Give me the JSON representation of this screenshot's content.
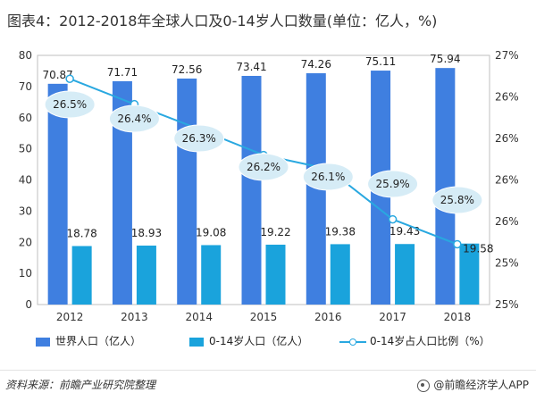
{
  "title": "图表4：2012-2018年全球人口及0-14岁人口数量(单位：亿人，%)",
  "chart_data": {
    "type": "bar+line",
    "categories": [
      "2012",
      "2013",
      "2014",
      "2015",
      "2016",
      "2017",
      "2018"
    ],
    "series": [
      {
        "name": "世界人口（亿人）",
        "axis": "left",
        "kind": "bar",
        "color": "#3f7fe0",
        "values": [
          70.87,
          71.71,
          72.56,
          73.41,
          74.26,
          75.11,
          75.94
        ]
      },
      {
        "name": "0-14岁人口（亿人）",
        "axis": "left",
        "kind": "bar",
        "color": "#1aa3dc",
        "values": [
          18.78,
          18.93,
          19.08,
          19.22,
          19.38,
          19.43,
          19.58
        ]
      },
      {
        "name": "0-14岁占人口比例（%）",
        "axis": "right",
        "kind": "line",
        "color": "#29a8e0",
        "values": [
          26.5,
          26.4,
          26.3,
          26.2,
          26.1,
          25.9,
          25.8
        ],
        "labels": [
          "26.5%",
          "26.4%",
          "26.3%",
          "26.2%",
          "26.1%",
          "25.9%",
          "25.8%"
        ]
      }
    ],
    "y_left": {
      "min": 0,
      "max": 80,
      "ticks": [
        "0",
        "10",
        "20",
        "30",
        "40",
        "50",
        "60",
        "70",
        "80"
      ]
    },
    "y_right": {
      "min": 25,
      "max": 27,
      "ticks": [
        "25%",
        "25%",
        "26%",
        "26%",
        "26%",
        "26%",
        "27%"
      ]
    }
  },
  "legend": {
    "world": "世界人口（亿人）",
    "children": "0-14岁人口（亿人）",
    "ratio": "0-14岁占人口比例（%）"
  },
  "footer": {
    "source": "资料来源：前瞻产业研究院整理",
    "brand": "@前瞻经济学人APP"
  }
}
